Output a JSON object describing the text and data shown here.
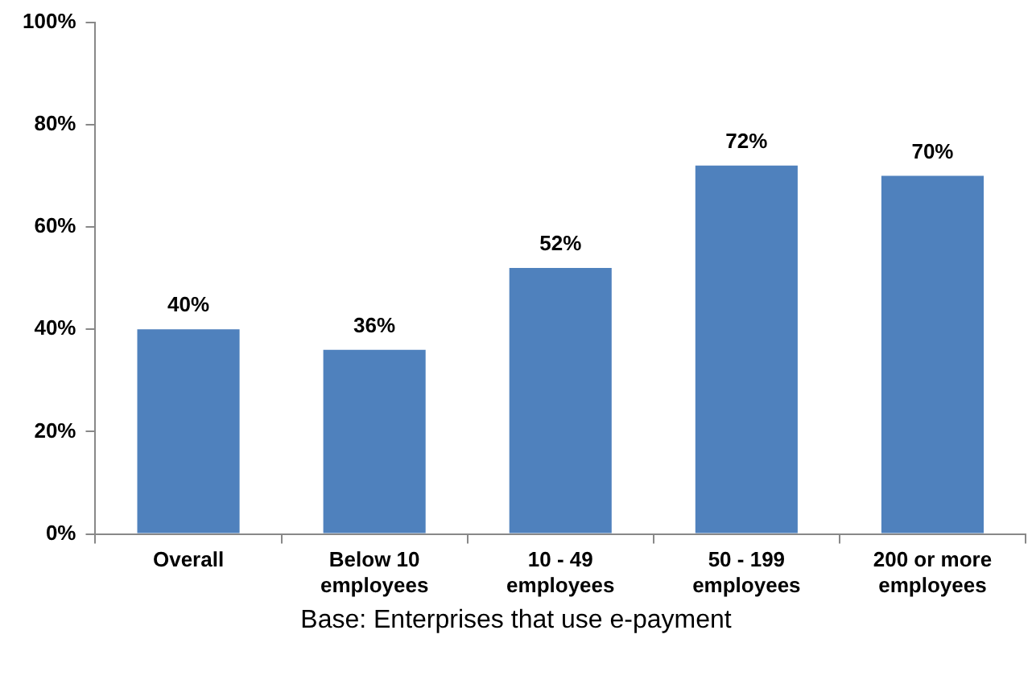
{
  "chart_data": {
    "type": "bar",
    "categories": [
      "Overall",
      "Below 10 employees",
      "10 - 49 employees",
      "50 - 199 employees",
      "200 or more employees"
    ],
    "values": [
      40,
      36,
      52,
      72,
      70
    ],
    "color": "#4f81bd",
    "value_labels": [
      "40%",
      "36%",
      "52%",
      "72%",
      "70%"
    ],
    "ylim": [
      0,
      100
    ],
    "yticks": [
      {
        "value": 0,
        "label": "0%"
      },
      {
        "value": 20,
        "label": "20%"
      },
      {
        "value": 40,
        "label": "40%"
      },
      {
        "value": 60,
        "label": "60%"
      },
      {
        "value": 80,
        "label": "80%"
      },
      {
        "value": 100,
        "label": "100%"
      }
    ],
    "grid": false,
    "legend": false,
    "annotations": [
      "Base: Enterprises that use e-payment"
    ]
  }
}
